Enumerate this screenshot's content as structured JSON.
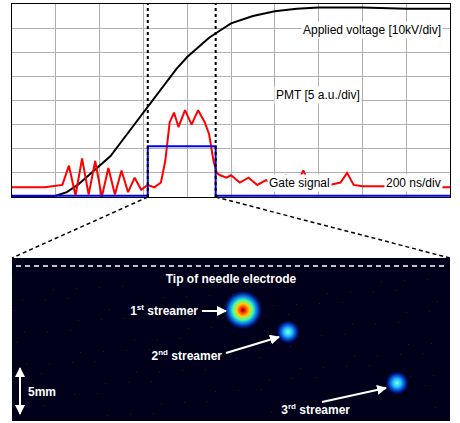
{
  "chart_data": {
    "type": "line",
    "xlim": [
      0,
      2000
    ],
    "xticks": [
      0,
      200,
      400,
      600,
      800,
      1000,
      1200,
      1400,
      1600,
      1800,
      2000
    ],
    "ylim": [
      0,
      8
    ],
    "yticks": [
      0,
      1,
      2,
      3,
      4,
      5,
      6,
      7,
      8
    ],
    "grid": true,
    "tick_labels": false,
    "annotations": [
      "200 ns/div"
    ],
    "vlines": [
      620,
      930
    ],
    "series": [
      {
        "name": "Applied voltage [10kV/div]",
        "color": "#000000",
        "line_style": "solid",
        "x": [
          0,
          100,
          200,
          250,
          300,
          350,
          400,
          450,
          500,
          550,
          600,
          650,
          700,
          750,
          800,
          850,
          900,
          950,
          1000,
          1100,
          1200,
          1300,
          1400,
          1600,
          1800,
          2000
        ],
        "values": [
          0,
          0,
          0.05,
          0.2,
          0.5,
          0.9,
          1.3,
          1.7,
          2.3,
          2.9,
          3.5,
          4.1,
          4.7,
          5.3,
          5.8,
          6.2,
          6.6,
          6.9,
          7.2,
          7.5,
          7.7,
          7.8,
          7.85,
          7.85,
          7.8,
          7.8
        ]
      },
      {
        "name": "PMT [5 a.u./div]",
        "color": "#ff0000",
        "line_style": "solid",
        "x": [
          0,
          150,
          230,
          260,
          290,
          320,
          350,
          380,
          410,
          440,
          470,
          500,
          530,
          560,
          590,
          620,
          650,
          680,
          700,
          720,
          740,
          760,
          790,
          820,
          850,
          880,
          900,
          920,
          935,
          950,
          980,
          1000,
          1040,
          1080,
          1120,
          1160,
          1200,
          1250,
          1300,
          1330,
          1360,
          1400,
          1450,
          1500,
          1530,
          1560,
          1600,
          1700,
          1800,
          1900,
          2000
        ],
        "values": [
          0.4,
          0.4,
          0.5,
          1.3,
          0.05,
          1.6,
          0.1,
          1.5,
          0.0,
          1.2,
          0.1,
          1.1,
          0.2,
          0.8,
          0.3,
          0.5,
          0.4,
          0.6,
          1.5,
          3.1,
          3.5,
          2.9,
          3.6,
          3.0,
          3.6,
          3.1,
          2.6,
          1.5,
          1.0,
          0.9,
          0.8,
          0.9,
          0.6,
          0.8,
          0.5,
          0.7,
          0.5,
          0.9,
          0.5,
          1.1,
          0.5,
          0.55,
          0.5,
          0.6,
          1.0,
          0.5,
          0.45,
          0.45,
          0.4,
          0.4,
          0.4
        ]
      },
      {
        "name": "Gate signal",
        "color": "#0000ff",
        "line_style": "solid",
        "x": [
          0,
          620,
          620,
          930,
          930,
          2000
        ],
        "values": [
          0.05,
          0.05,
          2.1,
          2.1,
          0.05,
          0.05
        ]
      }
    ]
  },
  "image": {
    "electrode_label": "Tip of needle electrode",
    "streamers": [
      "1st streamer",
      "2nd streamer",
      "3rd streamer"
    ],
    "scale_bar": "5mm"
  }
}
